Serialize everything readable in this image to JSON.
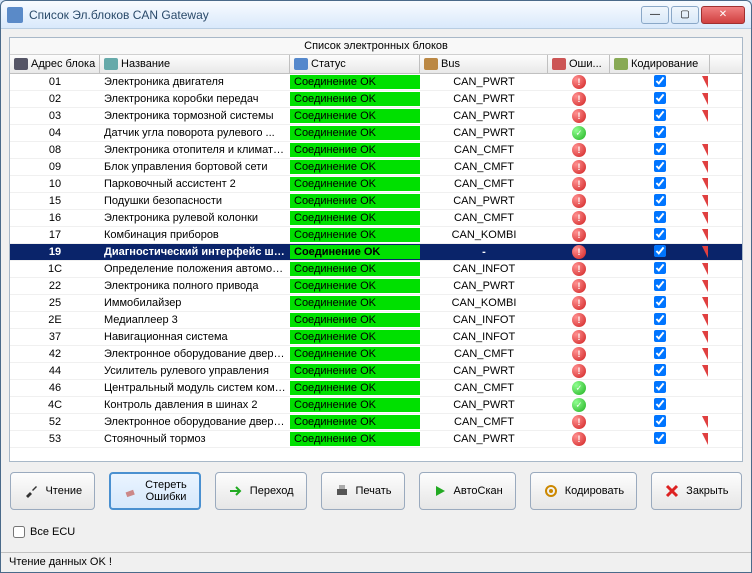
{
  "window": {
    "title": "Список Эл.блоков CAN Gateway"
  },
  "panel_title": "Список электронных блоков",
  "headers": {
    "addr": "Адрес блока",
    "name": "Название",
    "status": "Статус",
    "bus": "Bus",
    "err": "Оши...",
    "code": "Кодирование"
  },
  "selected_addr": "19",
  "rows": [
    {
      "addr": "01",
      "name": "Электроника двигателя",
      "status": "Соединение OK",
      "bus": "CAN_PWRT",
      "err": "red",
      "code": true,
      "flag": true
    },
    {
      "addr": "02",
      "name": "Электроника коробки передач",
      "status": "Соединение OK",
      "bus": "CAN_PWRT",
      "err": "red",
      "code": true,
      "flag": true
    },
    {
      "addr": "03",
      "name": "Электроника тормозной системы",
      "status": "Соединение OK",
      "bus": "CAN_PWRT",
      "err": "red",
      "code": true,
      "flag": true
    },
    {
      "addr": "04",
      "name": "Датчик угла поворота рулевого ...",
      "status": "Соединение OK",
      "bus": "CAN_PWRT",
      "err": "green",
      "code": true,
      "flag": false
    },
    {
      "addr": "08",
      "name": "Электроника отопителя и климати...",
      "status": "Соединение OK",
      "bus": "CAN_CMFT",
      "err": "red",
      "code": true,
      "flag": true
    },
    {
      "addr": "09",
      "name": "Блок управления бортовой сети",
      "status": "Соединение OK",
      "bus": "CAN_CMFT",
      "err": "red",
      "code": true,
      "flag": true
    },
    {
      "addr": "10",
      "name": "Парковочный ассистент 2",
      "status": "Соединение OK",
      "bus": "CAN_CMFT",
      "err": "red",
      "code": true,
      "flag": true
    },
    {
      "addr": "15",
      "name": "Подушки безопасности",
      "status": "Соединение OK",
      "bus": "CAN_PWRT",
      "err": "red",
      "code": true,
      "flag": true
    },
    {
      "addr": "16",
      "name": "Электроника рулевой колонки",
      "status": "Соединение OK",
      "bus": "CAN_CMFT",
      "err": "red",
      "code": true,
      "flag": true
    },
    {
      "addr": "17",
      "name": "Комбинация приборов",
      "status": "Соединение OK",
      "bus": "CAN_KOMBI",
      "err": "red",
      "code": true,
      "flag": true
    },
    {
      "addr": "19",
      "name": "Диагностический интерфейс ши...",
      "status": "Соединение OK",
      "bus": "-",
      "err": "red",
      "code": true,
      "flag": true
    },
    {
      "addr": "1C",
      "name": "Определение положения автомоб...",
      "status": "Соединение OK",
      "bus": "CAN_INFOT",
      "err": "red",
      "code": true,
      "flag": true
    },
    {
      "addr": "22",
      "name": "Электроника полного привода",
      "status": "Соединение OK",
      "bus": "CAN_PWRT",
      "err": "red",
      "code": true,
      "flag": true
    },
    {
      "addr": "25",
      "name": "Иммобилайзер",
      "status": "Соединение OK",
      "bus": "CAN_KOMBI",
      "err": "red",
      "code": true,
      "flag": true
    },
    {
      "addr": "2E",
      "name": "Медиаплеер 3",
      "status": "Соединение OK",
      "bus": "CAN_INFOT",
      "err": "red",
      "code": true,
      "flag": true
    },
    {
      "addr": "37",
      "name": "Навигационная система",
      "status": "Соединение OK",
      "bus": "CAN_INFOT",
      "err": "red",
      "code": true,
      "flag": true
    },
    {
      "addr": "42",
      "name": "Электронное оборудование двери ...",
      "status": "Соединение OK",
      "bus": "CAN_CMFT",
      "err": "red",
      "code": true,
      "flag": true
    },
    {
      "addr": "44",
      "name": "Усилитель рулевого управления",
      "status": "Соединение OK",
      "bus": "CAN_PWRT",
      "err": "red",
      "code": true,
      "flag": true
    },
    {
      "addr": "46",
      "name": "Центральный модуль систем комф...",
      "status": "Соединение OK",
      "bus": "CAN_CMFT",
      "err": "green",
      "code": true,
      "flag": false
    },
    {
      "addr": "4C",
      "name": "Контроль давления в шинах 2",
      "status": "Соединение OK",
      "bus": "CAN_PWRT",
      "err": "green",
      "code": true,
      "flag": false
    },
    {
      "addr": "52",
      "name": "Электронное оборудование двери ...",
      "status": "Соединение OK",
      "bus": "CAN_CMFT",
      "err": "red",
      "code": true,
      "flag": true
    },
    {
      "addr": "53",
      "name": "Стояночный тормоз",
      "status": "Соединение OK",
      "bus": "CAN_PWRT",
      "err": "red",
      "code": true,
      "flag": true
    }
  ],
  "buttons": {
    "read": "Чтение",
    "erase": "Стереть Ошибки",
    "goto": "Переход",
    "print": "Печать",
    "autoscan": "АвтоСкан",
    "encode": "Кодировать",
    "close": "Закрыть"
  },
  "all_ecu": "Все ECU",
  "statusbar": "Чтение данных OK !",
  "colors": {
    "status_ok_bg": "#00e000",
    "sel_bg": "#0a246a",
    "err_red": "#d02020",
    "err_green": "#20b020"
  }
}
